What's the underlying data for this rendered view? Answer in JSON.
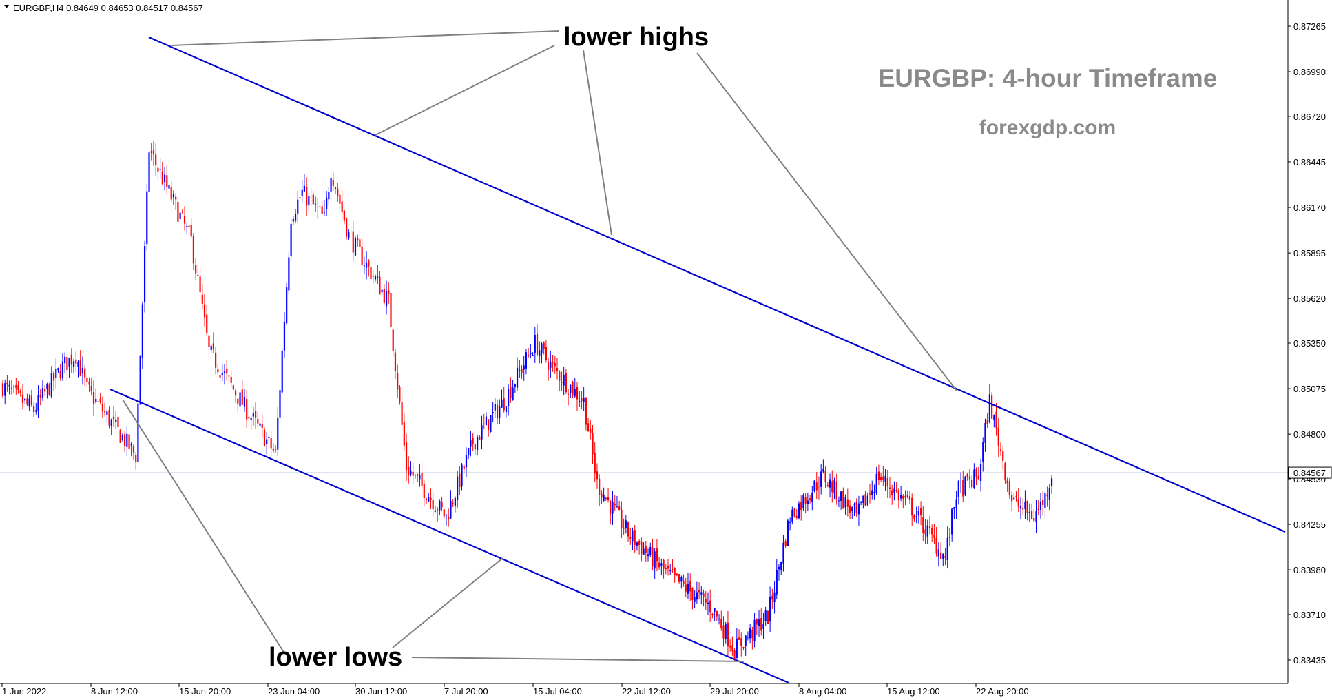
{
  "chart_data": {
    "type": "candlestick",
    "symbol_header": "EURGBP,H4  0.84649 0.84653 0.84517 0.84567",
    "title": "EURGBP: 4-hour Timeframe",
    "subtitle": "forexgdp.com",
    "current_price": 0.84567,
    "current_price_label": "0.84567",
    "ylim": [
      0.833,
      0.8739
    ],
    "y_ticks": [
      "0.87265",
      "0.86990",
      "0.86720",
      "0.86445",
      "0.86170",
      "0.85895",
      "0.85620",
      "0.85350",
      "0.85075",
      "0.84800",
      "0.84530",
      "0.84255",
      "0.83980",
      "0.83710",
      "0.83435"
    ],
    "x_ticks": [
      "1 Jun 2022",
      "8 Jun 12:00",
      "15 Jun 20:00",
      "23 Jun 04:00",
      "30 Jun 12:00",
      "7 Jul 20:00",
      "15 Jul 04:00",
      "22 Jul 12:00",
      "29 Jul 20:00",
      "8 Aug 04:00",
      "15 Aug 12:00",
      "22 Aug 20:00"
    ],
    "colors": {
      "bull": "#0000ff",
      "bear": "#ff0000",
      "trendline": "#0000cc",
      "pointer": "#808080",
      "price_line": "#9fb7d4"
    },
    "annotations": {
      "upper": "lower highs",
      "lower": "lower lows"
    },
    "anchors_price": [
      0.8509,
      0.84945,
      0.8521,
      0.8528,
      0.8507,
      0.8467,
      0.8652,
      0.8597,
      0.853,
      0.848,
      0.8468,
      0.857,
      0.8612,
      0.8626,
      0.861,
      0.864,
      0.86,
      0.856,
      0.846,
      0.843,
      0.8475,
      0.85,
      0.8535,
      0.852,
      0.85,
      0.845,
      0.842,
      0.8395,
      0.8375,
      0.835,
      0.837,
      0.843,
      0.8455,
      0.843,
      0.8455,
      0.8435,
      0.8405,
      0.8445,
      0.8455,
      0.85,
      0.844,
      0.843,
      0.8442,
      0.8456
    ]
  }
}
